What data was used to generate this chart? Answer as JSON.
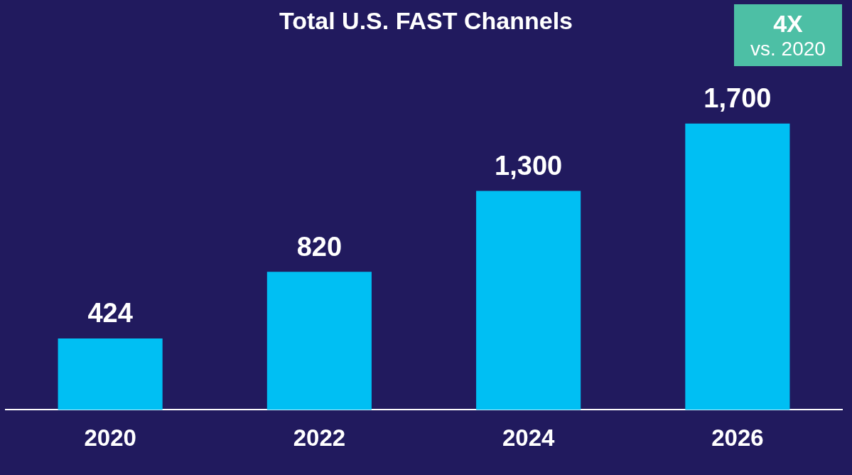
{
  "chart_data": {
    "type": "bar",
    "title": "Total U.S. FAST Channels",
    "categories": [
      "2020",
      "2022",
      "2024",
      "2026"
    ],
    "values": [
      424,
      820,
      1300,
      1700
    ],
    "color": "#00bff3",
    "data_labels": true,
    "value_labels": [
      "424",
      "820",
      "1,300",
      "1,700"
    ],
    "annotations": [
      "4X",
      "vs. 2020"
    ],
    "grid": false,
    "legend": false
  }
}
